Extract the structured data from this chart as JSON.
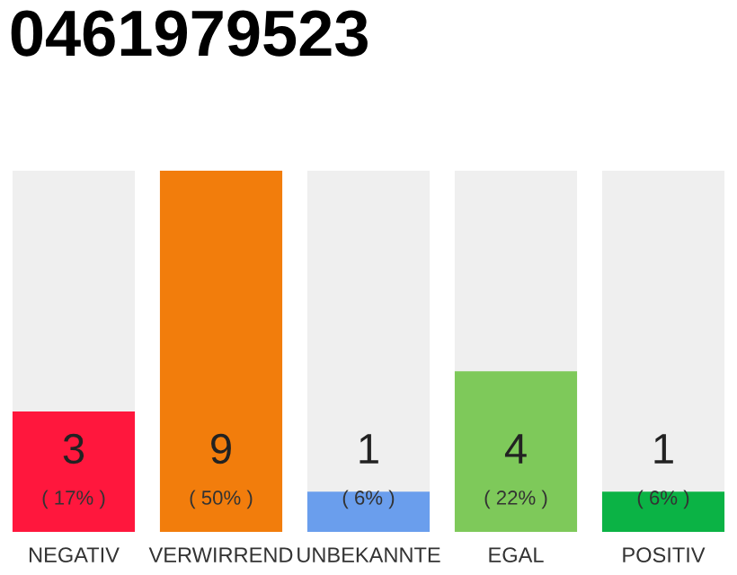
{
  "chart_data": {
    "type": "bar",
    "title": "0461979523",
    "categories": [
      "NEGATIV",
      "VERWIRREND",
      "UNBEKANNTE",
      "EGAL",
      "POSITIV"
    ],
    "values": [
      3,
      9,
      1,
      4,
      1
    ],
    "colors": [
      "#ff173d",
      "#f27d0c",
      "#6a9eed",
      "#7ec95a",
      "#0bb345"
    ],
    "value_labels": [
      "3\n( 17% )",
      "9\n( 50% )",
      "1\n( 6% )",
      "4\n( 22% )",
      "1\n( 6% )"
    ],
    "grid": false,
    "legend": false
  }
}
